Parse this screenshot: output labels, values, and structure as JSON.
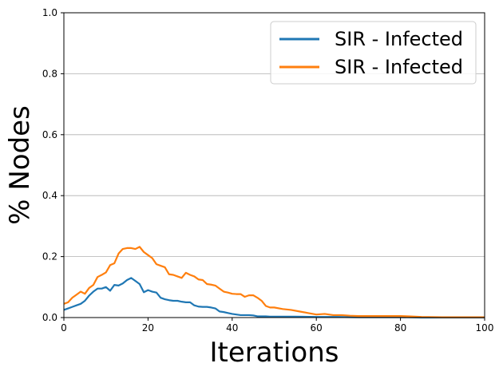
{
  "chart_data": {
    "type": "line",
    "title": "",
    "xlabel": "Iterations",
    "ylabel": "% Nodes",
    "xlim": [
      0,
      100
    ],
    "ylim": [
      0,
      1.0
    ],
    "xticks": [
      "0",
      "20",
      "40",
      "60",
      "80",
      "100"
    ],
    "yticks": [
      "0.0",
      "0.2",
      "0.4",
      "0.6",
      "0.8",
      "1.0"
    ],
    "grid": "y",
    "legend_position": "upper-right",
    "series": [
      {
        "name": "SIR - Infected",
        "color": "#1f77b4",
        "x": [
          0,
          1,
          2,
          3,
          4,
          5,
          6,
          7,
          8,
          9,
          10,
          11,
          12,
          13,
          14,
          15,
          16,
          17,
          18,
          19,
          20,
          21,
          22,
          23,
          24,
          25,
          26,
          27,
          28,
          29,
          30,
          31,
          32,
          33,
          34,
          35,
          36,
          37,
          38,
          39,
          40,
          41,
          42,
          43,
          44,
          45,
          46,
          47,
          48,
          49,
          50,
          55,
          60,
          65,
          70,
          75,
          80,
          85,
          90,
          95,
          100
        ],
        "values": [
          0.025,
          0.03,
          0.035,
          0.04,
          0.045,
          0.055,
          0.072,
          0.085,
          0.095,
          0.095,
          0.1,
          0.088,
          0.107,
          0.105,
          0.112,
          0.123,
          0.13,
          0.12,
          0.11,
          0.083,
          0.09,
          0.085,
          0.082,
          0.065,
          0.06,
          0.057,
          0.055,
          0.055,
          0.052,
          0.05,
          0.05,
          0.04,
          0.036,
          0.035,
          0.035,
          0.033,
          0.03,
          0.02,
          0.018,
          0.015,
          0.012,
          0.01,
          0.008,
          0.008,
          0.008,
          0.007,
          0.004,
          0.004,
          0.004,
          0.003,
          0.003,
          0.003,
          0.002,
          0.002,
          0.001,
          0.001,
          0.001,
          0.0,
          0.0,
          0.0,
          0.0
        ]
      },
      {
        "name": "SIR - Infected",
        "color": "#ff7f0e",
        "x": [
          0,
          1,
          2,
          3,
          4,
          5,
          6,
          7,
          8,
          9,
          10,
          11,
          12,
          13,
          14,
          15,
          16,
          17,
          18,
          19,
          20,
          21,
          22,
          23,
          24,
          25,
          26,
          27,
          28,
          29,
          30,
          31,
          32,
          33,
          34,
          35,
          36,
          37,
          38,
          39,
          40,
          41,
          42,
          43,
          44,
          45,
          46,
          47,
          48,
          49,
          50,
          52,
          54,
          56,
          58,
          60,
          62,
          64,
          66,
          68,
          70,
          75,
          80,
          82,
          85,
          90,
          95,
          100
        ],
        "values": [
          0.045,
          0.05,
          0.065,
          0.075,
          0.085,
          0.078,
          0.097,
          0.107,
          0.133,
          0.14,
          0.148,
          0.172,
          0.178,
          0.21,
          0.225,
          0.228,
          0.228,
          0.225,
          0.232,
          0.215,
          0.205,
          0.195,
          0.175,
          0.17,
          0.165,
          0.142,
          0.14,
          0.135,
          0.13,
          0.147,
          0.14,
          0.135,
          0.125,
          0.123,
          0.11,
          0.108,
          0.105,
          0.095,
          0.085,
          0.082,
          0.078,
          0.077,
          0.077,
          0.068,
          0.073,
          0.073,
          0.065,
          0.055,
          0.038,
          0.033,
          0.033,
          0.028,
          0.025,
          0.02,
          0.015,
          0.01,
          0.012,
          0.008,
          0.008,
          0.006,
          0.005,
          0.005,
          0.005,
          0.004,
          0.002,
          0.001,
          0.001,
          0.001
        ]
      }
    ]
  }
}
